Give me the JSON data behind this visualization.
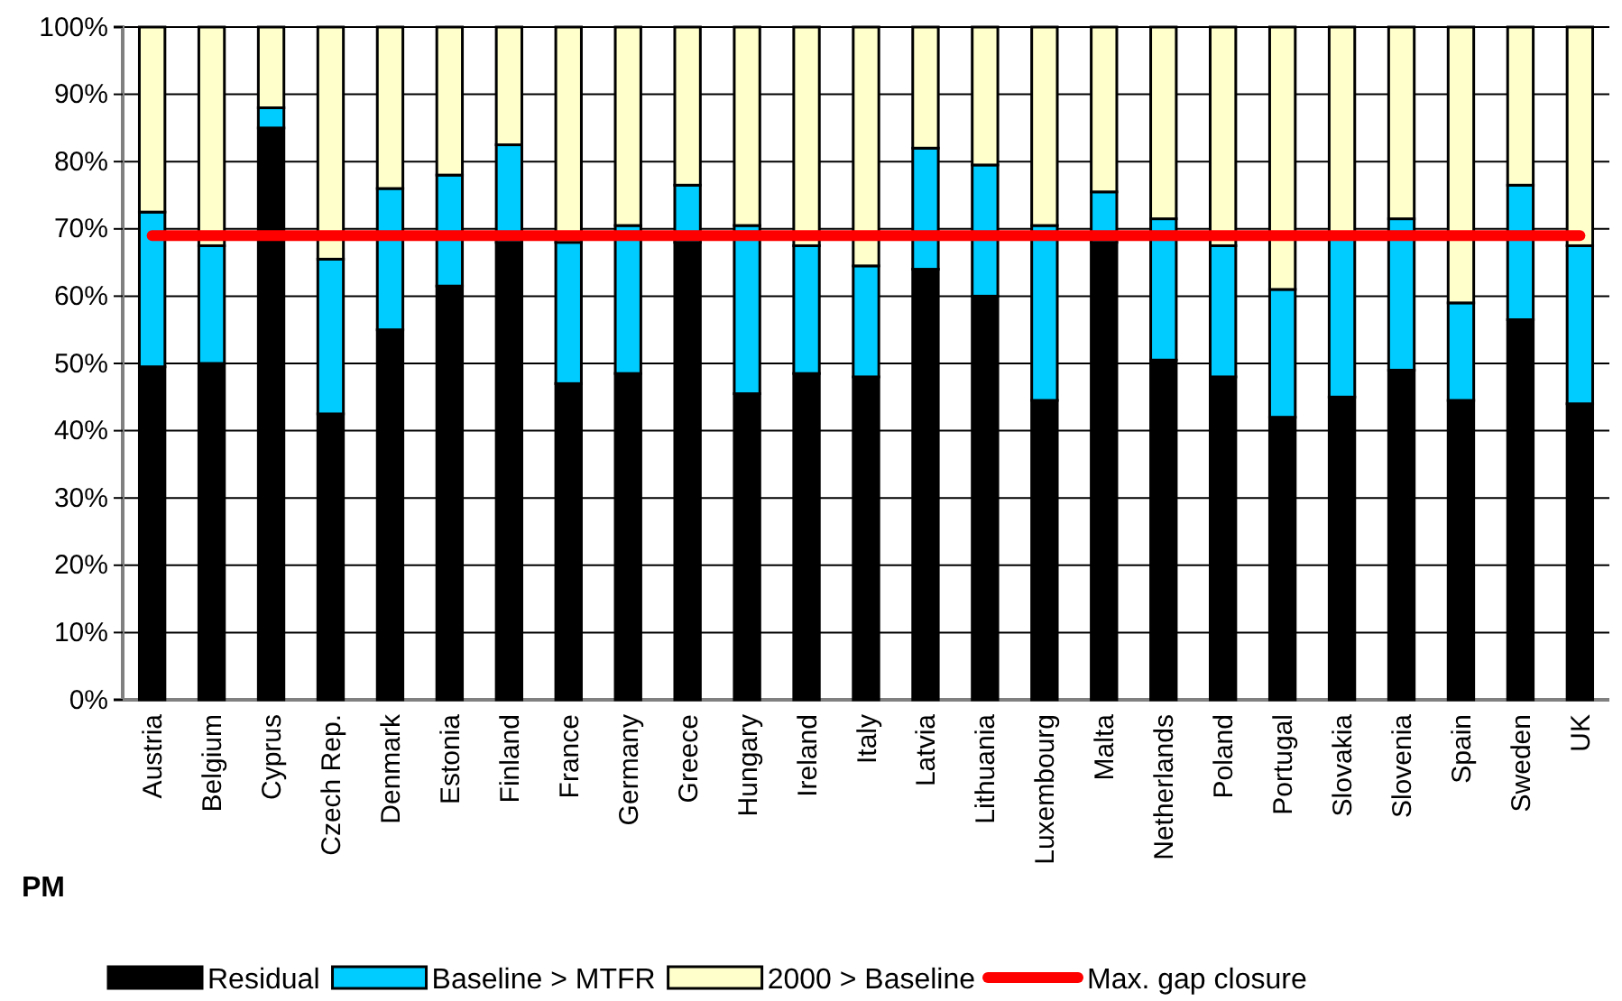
{
  "chart_data": {
    "type": "bar",
    "stacked": true,
    "categories": [
      "Austria",
      "Belgium",
      "Cyprus",
      "Czech Rep.",
      "Denmark",
      "Estonia",
      "Finland",
      "France",
      "Germany",
      "Greece",
      "Hungary",
      "Ireland",
      "Italy",
      "Latvia",
      "Lithuania",
      "Luxembourg",
      "Malta",
      "Netherlands",
      "Poland",
      "Portugal",
      "Slovakia",
      "Slovenia",
      "Spain",
      "Sweden",
      "UK"
    ],
    "series": [
      {
        "name": "Residual",
        "color": "#000000",
        "values": [
          49.5,
          50,
          85,
          42.5,
          55,
          61.5,
          68,
          47,
          48.5,
          68,
          45.5,
          48.5,
          48,
          64,
          60,
          44.5,
          68,
          50.5,
          48,
          42,
          45,
          49,
          44.5,
          56.5,
          44
        ]
      },
      {
        "name": "Baseline > MTFR",
        "color": "#00ccff",
        "values": [
          23,
          17.5,
          3,
          23,
          21,
          16.5,
          14.5,
          21,
          22,
          8.5,
          25,
          19,
          16.5,
          18,
          19.5,
          26,
          7.5,
          21,
          19.5,
          19,
          24,
          22.5,
          14.5,
          20,
          23.5
        ]
      },
      {
        "name": "2000 > Baseline",
        "color": "#ffffcc",
        "values": [
          27.5,
          32.5,
          12,
          34.5,
          24,
          22,
          17.5,
          32,
          29.5,
          23.5,
          29.5,
          32.5,
          35.5,
          18,
          20.5,
          29.5,
          24.5,
          28.5,
          32.5,
          39,
          31,
          28.5,
          41,
          23.5,
          32.5
        ]
      },
      {
        "name": "Max. gap closure",
        "type": "line",
        "color": "#ff0000",
        "values": [
          69,
          69,
          69,
          69,
          69,
          69,
          69,
          69,
          69,
          69,
          69,
          69,
          69,
          69,
          69,
          69,
          69,
          69,
          69,
          69,
          69,
          69,
          69,
          69,
          69
        ]
      }
    ],
    "ylim": [
      0,
      100
    ],
    "yticks": [
      {
        "value": 0,
        "label": "0%"
      },
      {
        "value": 10,
        "label": "10%"
      },
      {
        "value": 20,
        "label": "20%"
      },
      {
        "value": 30,
        "label": "30%"
      },
      {
        "value": 40,
        "label": "40%"
      },
      {
        "value": 50,
        "label": "50%"
      },
      {
        "value": 60,
        "label": "60%"
      },
      {
        "value": 70,
        "label": "70%"
      },
      {
        "value": 80,
        "label": "80%"
      },
      {
        "value": 90,
        "label": "90%"
      },
      {
        "value": 100,
        "label": "100%"
      }
    ],
    "grid": "y",
    "legend": "bottom",
    "annotations": [
      "PM"
    ]
  }
}
